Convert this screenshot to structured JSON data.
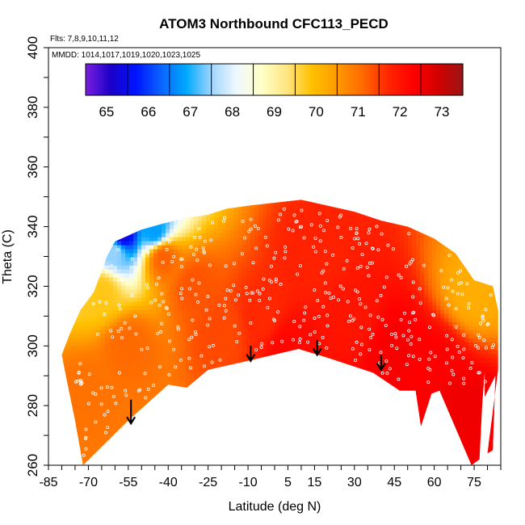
{
  "chart_data": {
    "type": "heatmap",
    "title": "ATOM3 Northbound CFC113_PECD",
    "flights_note": "Flts: 7,8,9,10,11,12",
    "dates_note": "MMDD: 1014,1017,1019,1020,1023,1025",
    "xlabel": "Latitude (deg N)",
    "ylabel": "Theta (C)",
    "xlim": [
      -85,
      85
    ],
    "ylim": [
      260,
      400
    ],
    "x_ticks": [
      -85,
      -70,
      -55,
      -40,
      -25,
      -10,
      5,
      15,
      30,
      45,
      60,
      75
    ],
    "y_ticks": [
      260,
      280,
      300,
      320,
      340,
      360,
      380,
      400
    ],
    "colorbar": {
      "range": [
        64.5,
        73.5
      ],
      "ticks": [
        65,
        66,
        67,
        68,
        69,
        70,
        71,
        72,
        73
      ],
      "colors": [
        "#7a1fe0",
        "#1a00c8",
        "#0014ff",
        "#0a64ff",
        "#00a8ff",
        "#9fd6ff",
        "#f0f8ff",
        "#ffffc8",
        "#ffe680",
        "#ffc000",
        "#ff9a00",
        "#ff6a00",
        "#ff2800",
        "#ff0000",
        "#d40000",
        "#9a1414"
      ]
    },
    "outline_bottom": [
      [
        -72,
        260
      ],
      [
        -55,
        275
      ],
      [
        -40,
        287
      ],
      [
        -33,
        286
      ],
      [
        -25,
        292
      ],
      [
        -10,
        295
      ],
      [
        9,
        299
      ],
      [
        20,
        296
      ],
      [
        37,
        291
      ],
      [
        47,
        285
      ],
      [
        53,
        285
      ],
      [
        55,
        273
      ],
      [
        59,
        284
      ],
      [
        62,
        285
      ],
      [
        74,
        260
      ],
      [
        77,
        262
      ],
      [
        78,
        280
      ],
      [
        79,
        292
      ],
      [
        79,
        283
      ],
      [
        83,
        290
      ],
      [
        82,
        265
      ],
      [
        80,
        264
      ]
    ],
    "outline_top": [
      [
        84,
        292
      ],
      [
        84,
        312
      ],
      [
        82,
        320
      ],
      [
        75,
        322
      ],
      [
        68,
        331
      ],
      [
        60,
        336
      ],
      [
        50,
        340
      ],
      [
        40,
        342
      ],
      [
        30,
        345
      ],
      [
        20,
        347
      ],
      [
        10,
        349
      ],
      [
        0,
        348
      ],
      [
        -10,
        347
      ],
      [
        -18,
        346
      ],
      [
        -25,
        344
      ],
      [
        -33,
        343
      ],
      [
        -42,
        341
      ],
      [
        -50,
        339
      ],
      [
        -55,
        337
      ],
      [
        -60,
        335
      ],
      [
        -63,
        330
      ],
      [
        -65,
        325
      ],
      [
        -68,
        318
      ],
      [
        -73,
        312
      ],
      [
        -77,
        304
      ],
      [
        -80,
        297
      ],
      [
        -78,
        288
      ],
      [
        -75,
        275
      ],
      [
        -73,
        265
      ],
      [
        -72,
        260
      ]
    ],
    "field_samples": [
      {
        "lat": -70,
        "theta": 285,
        "value": 71.0
      },
      {
        "lat": -55,
        "theta": 300,
        "value": 71.1
      },
      {
        "lat": -65,
        "theta": 318,
        "value": 69.8
      },
      {
        "lat": -60,
        "theta": 332,
        "value": 67.5
      },
      {
        "lat": -58,
        "theta": 337,
        "value": 65.2
      },
      {
        "lat": -45,
        "theta": 338,
        "value": 66.8
      },
      {
        "lat": -42,
        "theta": 330,
        "value": 71.2
      },
      {
        "lat": -30,
        "theta": 320,
        "value": 71.3
      },
      {
        "lat": -20,
        "theta": 305,
        "value": 71.4
      },
      {
        "lat": -5,
        "theta": 310,
        "value": 71.7
      },
      {
        "lat": 5,
        "theta": 300,
        "value": 72.2
      },
      {
        "lat": 15,
        "theta": 330,
        "value": 71.8
      },
      {
        "lat": 30,
        "theta": 310,
        "value": 72.0
      },
      {
        "lat": 45,
        "theta": 300,
        "value": 72.4
      },
      {
        "lat": 60,
        "theta": 295,
        "value": 72.3
      },
      {
        "lat": 70,
        "theta": 280,
        "value": 72.5
      },
      {
        "lat": 75,
        "theta": 318,
        "value": 70.2
      }
    ],
    "arrows": [
      {
        "lat": -54,
        "theta_top": 282,
        "theta_tip": 274
      },
      {
        "lat": -9,
        "theta_top": 300,
        "theta_tip": 295
      },
      {
        "lat": 16,
        "theta_top": 302,
        "theta_tip": 297
      },
      {
        "lat": 40,
        "theta_top": 297,
        "theta_tip": 292
      }
    ]
  }
}
